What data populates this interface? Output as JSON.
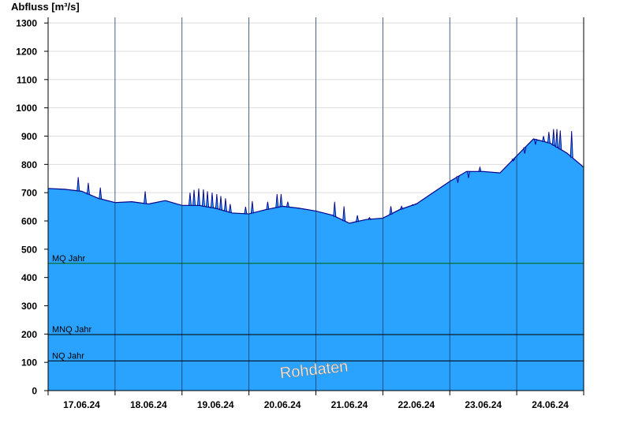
{
  "chart_data": {
    "type": "area",
    "ylabel": "Abfluss [m³/s]",
    "xlabel": "",
    "title": "",
    "ylim": [
      0,
      1320
    ],
    "yticks": [
      0,
      100,
      200,
      300,
      400,
      500,
      600,
      700,
      800,
      900,
      1000,
      1100,
      1200,
      1300
    ],
    "xlim": [
      0,
      8
    ],
    "x_tick_labels": [
      "17.06.24",
      "18.06.24",
      "19.06.24",
      "20.06.24",
      "21.06.24",
      "22.06.24",
      "23.06.24",
      "24.06.24"
    ],
    "grid": true,
    "colors": {
      "fill": "#29a3ff",
      "line": "#00008b",
      "mq": "#006400",
      "mnq": "#000000",
      "nq": "#000000",
      "grid": "#dddddd"
    },
    "reference_lines": [
      {
        "label": "MQ Jahr",
        "value": 450,
        "color": "#006400"
      },
      {
        "label": "MNQ Jahr",
        "value": 198,
        "color": "#000000"
      },
      {
        "label": "NQ Jahr",
        "value": 105,
        "color": "#000000"
      }
    ],
    "watermark": "Rohdaten",
    "series": [
      {
        "x": [
          0,
          0.25,
          0.5,
          0.75,
          1.0,
          1.25,
          1.5,
          1.75,
          2.0,
          2.25,
          2.5,
          2.75,
          3.0,
          3.25,
          3.5,
          3.75,
          4.0,
          4.25,
          4.5,
          4.75,
          5.0,
          5.25,
          5.5,
          5.75,
          6.0,
          6.25,
          6.5,
          6.75,
          7.0,
          7.25,
          7.5,
          7.75,
          8.0
        ],
        "y": [
          715,
          712,
          705,
          680,
          665,
          668,
          660,
          672,
          655,
          655,
          645,
          628,
          625,
          640,
          652,
          645,
          635,
          620,
          592,
          605,
          610,
          640,
          660,
          700,
          740,
          775,
          775,
          770,
          830,
          890,
          875,
          840,
          790
        ]
      }
    ],
    "spikes": [
      {
        "x": 0.45,
        "y": 755
      },
      {
        "x": 0.6,
        "y": 735
      },
      {
        "x": 0.78,
        "y": 718
      },
      {
        "x": 1.45,
        "y": 705
      },
      {
        "x": 2.12,
        "y": 700
      },
      {
        "x": 2.18,
        "y": 710
      },
      {
        "x": 2.25,
        "y": 715
      },
      {
        "x": 2.32,
        "y": 712
      },
      {
        "x": 2.38,
        "y": 705
      },
      {
        "x": 2.45,
        "y": 700
      },
      {
        "x": 2.52,
        "y": 695
      },
      {
        "x": 2.58,
        "y": 688
      },
      {
        "x": 2.65,
        "y": 680
      },
      {
        "x": 2.72,
        "y": 660
      },
      {
        "x": 2.95,
        "y": 650
      },
      {
        "x": 3.05,
        "y": 670
      },
      {
        "x": 3.28,
        "y": 668
      },
      {
        "x": 3.42,
        "y": 695
      },
      {
        "x": 3.48,
        "y": 695
      },
      {
        "x": 3.58,
        "y": 668
      },
      {
        "x": 4.28,
        "y": 668
      },
      {
        "x": 4.42,
        "y": 652
      },
      {
        "x": 4.62,
        "y": 620
      },
      {
        "x": 4.8,
        "y": 612
      },
      {
        "x": 5.12,
        "y": 652
      },
      {
        "x": 5.28,
        "y": 652
      },
      {
        "x": 5.45,
        "y": 658
      },
      {
        "x": 5.5,
        "y": 660
      },
      {
        "x": 6.12,
        "y": 735
      },
      {
        "x": 6.28,
        "y": 752
      },
      {
        "x": 6.45,
        "y": 790
      },
      {
        "x": 6.95,
        "y": 812
      },
      {
        "x": 7.12,
        "y": 838
      },
      {
        "x": 7.28,
        "y": 870
      },
      {
        "x": 7.33,
        "y": 885
      },
      {
        "x": 7.4,
        "y": 900
      },
      {
        "x": 7.48,
        "y": 915
      },
      {
        "x": 7.55,
        "y": 925
      },
      {
        "x": 7.6,
        "y": 925
      },
      {
        "x": 7.65,
        "y": 920
      },
      {
        "x": 7.82,
        "y": 918
      }
    ]
  }
}
